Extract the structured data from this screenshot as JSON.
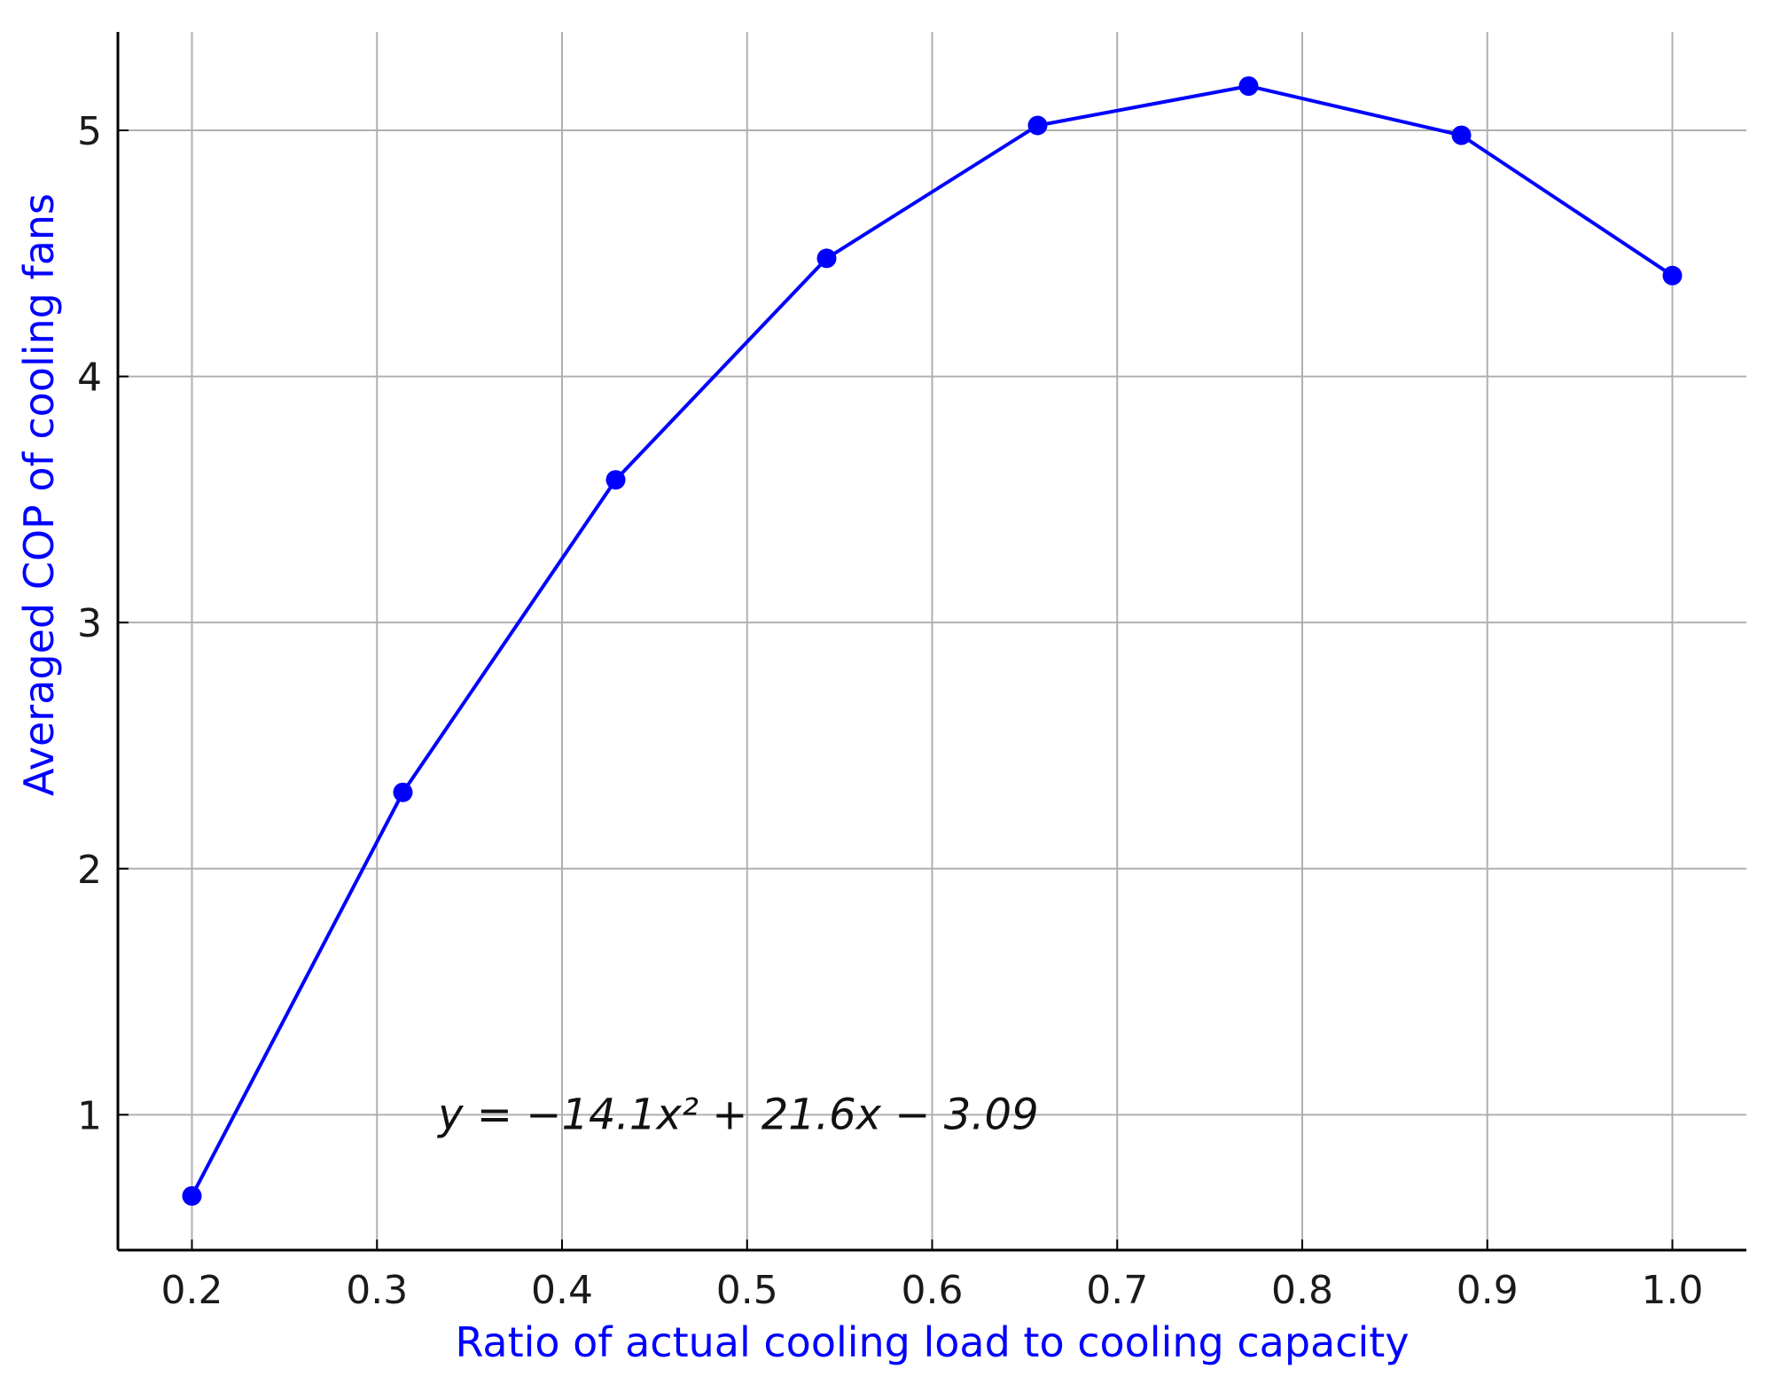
{
  "chart_data": {
    "type": "line",
    "xlabel": "Ratio of actual cooling load to cooling capacity",
    "ylabel": "Averaged COP of cooling fans",
    "xlim": [
      0.16,
      1.04
    ],
    "ylim": [
      0.45,
      5.4
    ],
    "x_ticks": [
      0.2,
      0.3,
      0.4,
      0.5,
      0.6,
      0.7,
      0.8,
      0.9,
      1.0
    ],
    "x_tick_labels": [
      "0.2",
      "0.3",
      "0.4",
      "0.5",
      "0.6",
      "0.7",
      "0.8",
      "0.9",
      "1.0"
    ],
    "y_ticks": [
      1,
      2,
      3,
      4,
      5
    ],
    "y_tick_labels": [
      "1",
      "2",
      "3",
      "4",
      "5"
    ],
    "grid": true,
    "series": [
      {
        "x": [
          0.2,
          0.314,
          0.429,
          0.543,
          0.657,
          0.771,
          0.886,
          1.0
        ],
        "y": [
          0.67,
          2.31,
          3.58,
          4.48,
          5.02,
          5.18,
          4.98,
          4.41
        ],
        "color": "#0000ff",
        "marker": "circle"
      }
    ],
    "annotation": {
      "text": "y = −14.1x² + 21.6x − 3.09",
      "x": 0.333,
      "y": 1.0
    },
    "label_color": "#0000ff",
    "axis_color": "#000000",
    "grid_color": "#b0b0b0"
  }
}
